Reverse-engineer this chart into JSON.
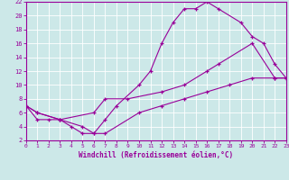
{
  "xlabel": "Windchill (Refroidissement éolien,°C)",
  "bg_color": "#cce8e8",
  "line_color": "#990099",
  "grid_color": "#aacccc",
  "xlim": [
    0,
    23
  ],
  "ylim": [
    2,
    22
  ],
  "xticks": [
    0,
    1,
    2,
    3,
    4,
    5,
    6,
    7,
    8,
    9,
    10,
    11,
    12,
    13,
    14,
    15,
    16,
    17,
    18,
    19,
    20,
    21,
    22,
    23
  ],
  "yticks": [
    2,
    4,
    6,
    8,
    10,
    12,
    14,
    16,
    18,
    20,
    22
  ],
  "line1_x": [
    0,
    1,
    2,
    3,
    4,
    5,
    6,
    7,
    8,
    10,
    11,
    12,
    13,
    14,
    15,
    16,
    17,
    19,
    20,
    21,
    22,
    23
  ],
  "line1_y": [
    7,
    5,
    5,
    5,
    4,
    3,
    3,
    5,
    7,
    10,
    12,
    16,
    19,
    21,
    21,
    22,
    21,
    19,
    17,
    16,
    13,
    11
  ],
  "line2_x": [
    0,
    1,
    3,
    6,
    7,
    9,
    12,
    14,
    16,
    17,
    20,
    22,
    23
  ],
  "line2_y": [
    7,
    6,
    5,
    6,
    8,
    8,
    9,
    10,
    12,
    13,
    16,
    11,
    11
  ],
  "line3_x": [
    0,
    1,
    3,
    5,
    6,
    7,
    10,
    12,
    14,
    16,
    18,
    20,
    22,
    23
  ],
  "line3_y": [
    7,
    6,
    5,
    4,
    3,
    3,
    6,
    7,
    8,
    9,
    10,
    11,
    11,
    11
  ]
}
